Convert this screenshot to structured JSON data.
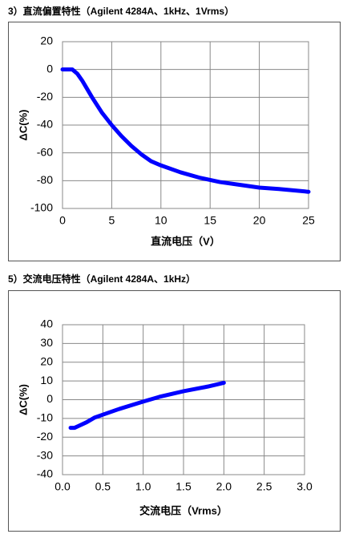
{
  "chart_data": [
    {
      "type": "line",
      "title": "3）直流偏置特性（Agilent 4284A、1kHz、1Vrms）",
      "x_label": "直流电压（V）",
      "y_label": "ΔC(%)",
      "x": [
        0,
        0.5,
        1,
        1.5,
        2,
        3,
        4,
        5,
        6,
        7,
        8,
        9,
        10,
        12,
        14,
        16,
        18,
        20,
        22,
        25
      ],
      "values": [
        0,
        0,
        0,
        -3,
        -8,
        -20,
        -31,
        -40,
        -48,
        -55,
        -61,
        -66,
        -69,
        -74,
        -78,
        -81,
        -83,
        -85,
        -86,
        -88
      ],
      "color": "#0000ff",
      "xlim": [
        0,
        25
      ],
      "ylim": [
        -100,
        20
      ],
      "xticks": [
        0,
        5,
        10,
        15,
        20,
        25
      ],
      "yticks": [
        -100,
        -80,
        -60,
        -40,
        -20,
        0,
        20
      ],
      "grid": true
    },
    {
      "type": "line",
      "title": "5）交流电压特性（Agilent 4284A、1kHz）",
      "x_label": "交流电压（Vrms）",
      "y_label": "ΔC(%)",
      "x": [
        0.1,
        0.15,
        0.2,
        0.3,
        0.4,
        0.5,
        0.7,
        1.0,
        1.2,
        1.5,
        1.8,
        2.0
      ],
      "values": [
        -15,
        -15,
        -14,
        -12,
        -9.5,
        -8,
        -5,
        -1,
        1.5,
        4.5,
        7,
        9
      ],
      "color": "#0000ff",
      "xlim": [
        0,
        3
      ],
      "ylim": [
        -40,
        40
      ],
      "xticks": [
        {
          "value": 0,
          "label": "0.0"
        },
        0.5,
        {
          "value": 1,
          "label": "1.0"
        },
        1.5,
        {
          "value": 2,
          "label": "2.0"
        },
        2.5,
        {
          "value": 3,
          "label": "3.0"
        }
      ],
      "yticks": [
        -40,
        -30,
        -20,
        -10,
        0,
        10,
        20,
        30,
        40
      ],
      "grid": true
    }
  ]
}
